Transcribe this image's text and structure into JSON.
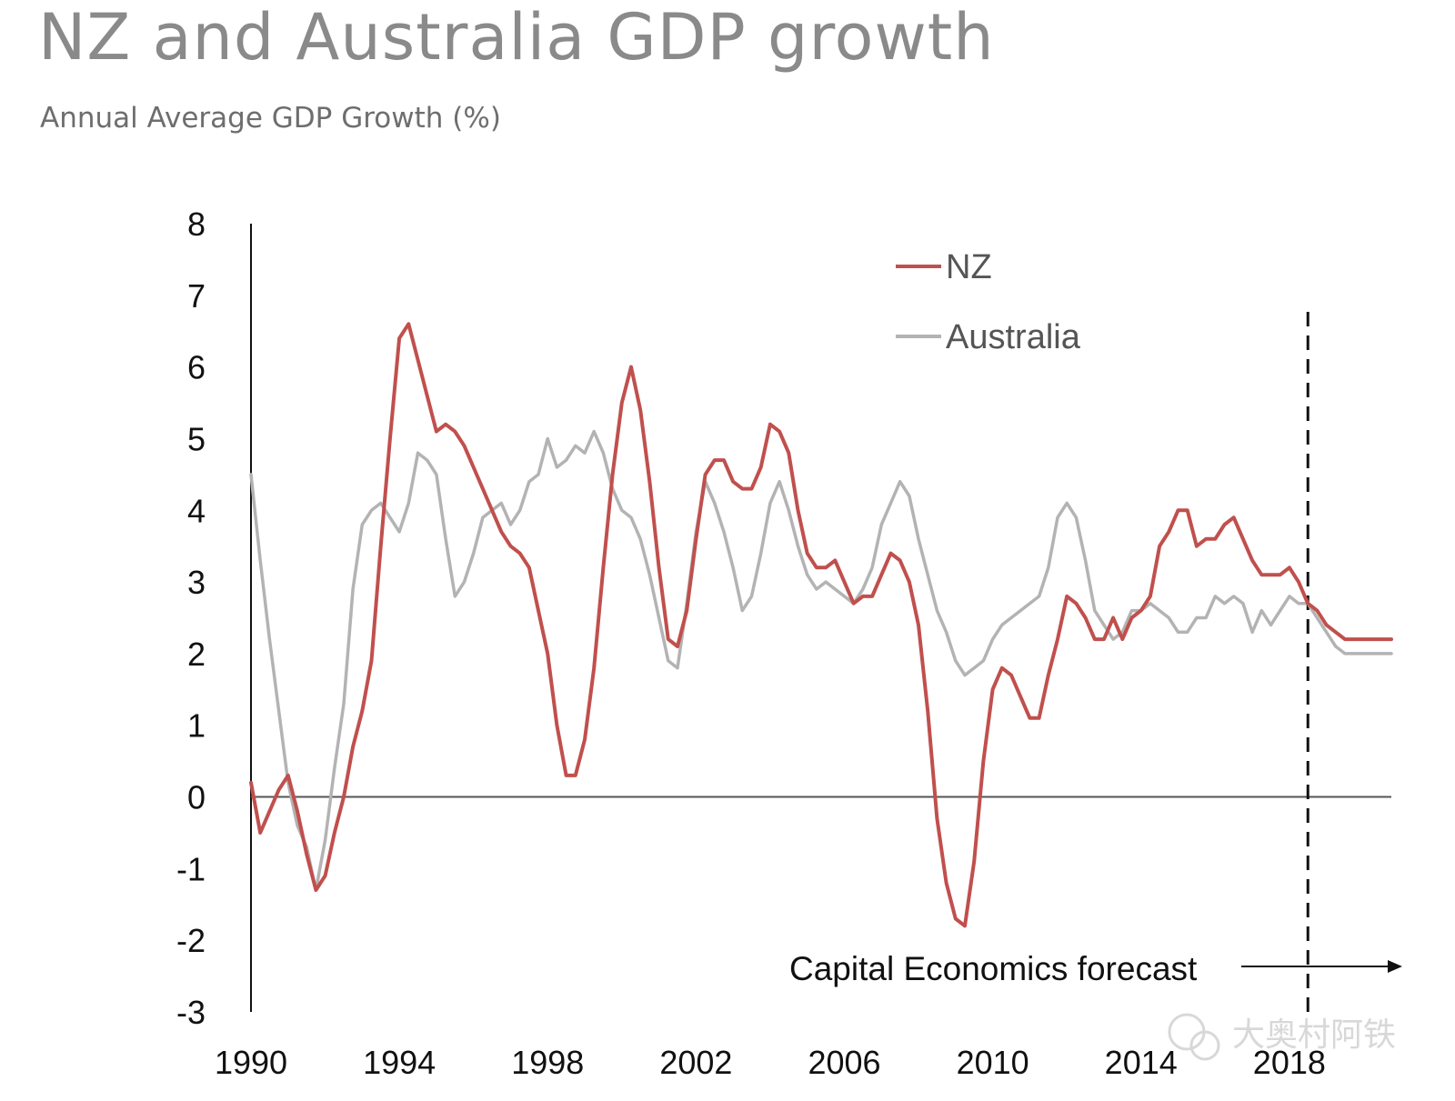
{
  "chart_data": {
    "type": "line",
    "title": "NZ and Australia GDP growth",
    "subtitle": "Annual Average GDP Growth (%)",
    "xlabel": "",
    "ylabel": "",
    "ylim": [
      -3,
      8
    ],
    "xlim": [
      1990,
      2020.75
    ],
    "yticks": [
      "8",
      "7",
      "6",
      "5",
      "4",
      "3",
      "2",
      "1",
      "0",
      "-1",
      "-2",
      "-3"
    ],
    "xticks": [
      {
        "value": 1990,
        "label": "1990"
      },
      {
        "value": 1994,
        "label": "1994"
      },
      {
        "value": 1998,
        "label": "1998"
      },
      {
        "value": 2002,
        "label": "2002"
      },
      {
        "value": 2006,
        "label": "2006"
      },
      {
        "value": 2010,
        "label": "2010"
      },
      {
        "value": 2014,
        "label": "2014"
      },
      {
        "value": 2018,
        "label": "2018"
      }
    ],
    "legend_position": "top-right",
    "series": [
      {
        "name": "NZ",
        "color": "#c0504d",
        "points": [
          [
            1990,
            0.2
          ],
          [
            1990.25,
            -0.5
          ],
          [
            1990.5,
            -0.2
          ],
          [
            1990.75,
            0.1
          ],
          [
            1991,
            0.3
          ],
          [
            1991.25,
            -0.2
          ],
          [
            1991.5,
            -0.8
          ],
          [
            1991.75,
            -1.3
          ],
          [
            1992,
            -1.1
          ],
          [
            1992.25,
            -0.5
          ],
          [
            1992.5,
            0.0
          ],
          [
            1992.75,
            0.7
          ],
          [
            1993,
            1.2
          ],
          [
            1993.25,
            1.9
          ],
          [
            1993.5,
            3.5
          ],
          [
            1993.75,
            5.0
          ],
          [
            1994,
            6.4
          ],
          [
            1994.25,
            6.6
          ],
          [
            1994.5,
            6.1
          ],
          [
            1994.75,
            5.6
          ],
          [
            1995,
            5.1
          ],
          [
            1995.25,
            5.2
          ],
          [
            1995.5,
            5.1
          ],
          [
            1995.75,
            4.9
          ],
          [
            1996,
            4.6
          ],
          [
            1996.25,
            4.3
          ],
          [
            1996.5,
            4.0
          ],
          [
            1996.75,
            3.7
          ],
          [
            1997,
            3.5
          ],
          [
            1997.25,
            3.4
          ],
          [
            1997.5,
            3.2
          ],
          [
            1997.75,
            2.6
          ],
          [
            1998,
            2.0
          ],
          [
            1998.25,
            1.0
          ],
          [
            1998.5,
            0.3
          ],
          [
            1998.75,
            0.3
          ],
          [
            1999,
            0.8
          ],
          [
            1999.25,
            1.8
          ],
          [
            1999.5,
            3.2
          ],
          [
            1999.75,
            4.5
          ],
          [
            2000,
            5.5
          ],
          [
            2000.25,
            6.0
          ],
          [
            2000.5,
            5.4
          ],
          [
            2000.75,
            4.4
          ],
          [
            2001,
            3.2
          ],
          [
            2001.25,
            2.2
          ],
          [
            2001.5,
            2.1
          ],
          [
            2001.75,
            2.6
          ],
          [
            2002,
            3.6
          ],
          [
            2002.25,
            4.5
          ],
          [
            2002.5,
            4.7
          ],
          [
            2002.75,
            4.7
          ],
          [
            2003,
            4.4
          ],
          [
            2003.25,
            4.3
          ],
          [
            2003.5,
            4.3
          ],
          [
            2003.75,
            4.6
          ],
          [
            2004,
            5.2
          ],
          [
            2004.25,
            5.1
          ],
          [
            2004.5,
            4.8
          ],
          [
            2004.75,
            4.0
          ],
          [
            2005,
            3.4
          ],
          [
            2005.25,
            3.2
          ],
          [
            2005.5,
            3.2
          ],
          [
            2005.75,
            3.3
          ],
          [
            2006,
            3.0
          ],
          [
            2006.25,
            2.7
          ],
          [
            2006.5,
            2.8
          ],
          [
            2006.75,
            2.8
          ],
          [
            2007,
            3.1
          ],
          [
            2007.25,
            3.4
          ],
          [
            2007.5,
            3.3
          ],
          [
            2007.75,
            3.0
          ],
          [
            2008,
            2.4
          ],
          [
            2008.25,
            1.2
          ],
          [
            2008.5,
            -0.3
          ],
          [
            2008.75,
            -1.2
          ],
          [
            2009,
            -1.7
          ],
          [
            2009.25,
            -1.8
          ],
          [
            2009.5,
            -0.9
          ],
          [
            2009.75,
            0.5
          ],
          [
            2010,
            1.5
          ],
          [
            2010.25,
            1.8
          ],
          [
            2010.5,
            1.7
          ],
          [
            2010.75,
            1.4
          ],
          [
            2011,
            1.1
          ],
          [
            2011.25,
            1.1
          ],
          [
            2011.5,
            1.7
          ],
          [
            2011.75,
            2.2
          ],
          [
            2012,
            2.8
          ],
          [
            2012.25,
            2.7
          ],
          [
            2012.5,
            2.5
          ],
          [
            2012.75,
            2.2
          ],
          [
            2013,
            2.2
          ],
          [
            2013.25,
            2.5
          ],
          [
            2013.5,
            2.2
          ],
          [
            2013.75,
            2.5
          ],
          [
            2014,
            2.6
          ],
          [
            2014.25,
            2.8
          ],
          [
            2014.5,
            3.5
          ],
          [
            2014.75,
            3.7
          ],
          [
            2015,
            4.0
          ],
          [
            2015.25,
            4.0
          ],
          [
            2015.5,
            3.5
          ],
          [
            2015.75,
            3.6
          ],
          [
            2016,
            3.6
          ],
          [
            2016.25,
            3.8
          ],
          [
            2016.5,
            3.9
          ],
          [
            2016.75,
            3.6
          ],
          [
            2017,
            3.3
          ],
          [
            2017.25,
            3.1
          ],
          [
            2017.5,
            3.1
          ],
          [
            2017.75,
            3.1
          ],
          [
            2018,
            3.2
          ],
          [
            2018.25,
            3.0
          ],
          [
            2018.5,
            2.7
          ],
          [
            2018.75,
            2.6
          ],
          [
            2019,
            2.4
          ],
          [
            2019.25,
            2.3
          ],
          [
            2019.5,
            2.2
          ],
          [
            2019.75,
            2.2
          ],
          [
            2020,
            2.2
          ],
          [
            2020.25,
            2.2
          ],
          [
            2020.5,
            2.2
          ],
          [
            2020.75,
            2.2
          ]
        ]
      },
      {
        "name": "Australia",
        "color": "#b3b3b3",
        "points": [
          [
            1990,
            4.5
          ],
          [
            1990.25,
            3.3
          ],
          [
            1990.5,
            2.2
          ],
          [
            1990.75,
            1.2
          ],
          [
            1991,
            0.2
          ],
          [
            1991.25,
            -0.4
          ],
          [
            1991.5,
            -0.7
          ],
          [
            1991.75,
            -1.3
          ],
          [
            1992,
            -0.6
          ],
          [
            1992.25,
            0.4
          ],
          [
            1992.5,
            1.3
          ],
          [
            1992.75,
            2.9
          ],
          [
            1993,
            3.8
          ],
          [
            1993.25,
            4.0
          ],
          [
            1993.5,
            4.1
          ],
          [
            1993.75,
            3.9
          ],
          [
            1994,
            3.7
          ],
          [
            1994.25,
            4.1
          ],
          [
            1994.5,
            4.8
          ],
          [
            1994.75,
            4.7
          ],
          [
            1995,
            4.5
          ],
          [
            1995.25,
            3.6
          ],
          [
            1995.5,
            2.8
          ],
          [
            1995.75,
            3.0
          ],
          [
            1996,
            3.4
          ],
          [
            1996.25,
            3.9
          ],
          [
            1996.5,
            4.0
          ],
          [
            1996.75,
            4.1
          ],
          [
            1997,
            3.8
          ],
          [
            1997.25,
            4.0
          ],
          [
            1997.5,
            4.4
          ],
          [
            1997.75,
            4.5
          ],
          [
            1998,
            5.0
          ],
          [
            1998.25,
            4.6
          ],
          [
            1998.5,
            4.7
          ],
          [
            1998.75,
            4.9
          ],
          [
            1999,
            4.8
          ],
          [
            1999.25,
            5.1
          ],
          [
            1999.5,
            4.8
          ],
          [
            1999.75,
            4.3
          ],
          [
            2000,
            4.0
          ],
          [
            2000.25,
            3.9
          ],
          [
            2000.5,
            3.6
          ],
          [
            2000.75,
            3.1
          ],
          [
            2001,
            2.5
          ],
          [
            2001.25,
            1.9
          ],
          [
            2001.5,
            1.8
          ],
          [
            2001.75,
            2.7
          ],
          [
            2002,
            3.7
          ],
          [
            2002.25,
            4.4
          ],
          [
            2002.5,
            4.1
          ],
          [
            2002.75,
            3.7
          ],
          [
            2003,
            3.2
          ],
          [
            2003.25,
            2.6
          ],
          [
            2003.5,
            2.8
          ],
          [
            2003.75,
            3.4
          ],
          [
            2004,
            4.1
          ],
          [
            2004.25,
            4.4
          ],
          [
            2004.5,
            4.0
          ],
          [
            2004.75,
            3.5
          ],
          [
            2005,
            3.1
          ],
          [
            2005.25,
            2.9
          ],
          [
            2005.5,
            3.0
          ],
          [
            2005.75,
            2.9
          ],
          [
            2006,
            2.8
          ],
          [
            2006.25,
            2.7
          ],
          [
            2006.5,
            2.9
          ],
          [
            2006.75,
            3.2
          ],
          [
            2007,
            3.8
          ],
          [
            2007.25,
            4.1
          ],
          [
            2007.5,
            4.4
          ],
          [
            2007.75,
            4.2
          ],
          [
            2008,
            3.6
          ],
          [
            2008.25,
            3.1
          ],
          [
            2008.5,
            2.6
          ],
          [
            2008.75,
            2.3
          ],
          [
            2009,
            1.9
          ],
          [
            2009.25,
            1.7
          ],
          [
            2009.5,
            1.8
          ],
          [
            2009.75,
            1.9
          ],
          [
            2010,
            2.2
          ],
          [
            2010.25,
            2.4
          ],
          [
            2010.5,
            2.5
          ],
          [
            2010.75,
            2.6
          ],
          [
            2011,
            2.7
          ],
          [
            2011.25,
            2.8
          ],
          [
            2011.5,
            3.2
          ],
          [
            2011.75,
            3.9
          ],
          [
            2012,
            4.1
          ],
          [
            2012.25,
            3.9
          ],
          [
            2012.5,
            3.3
          ],
          [
            2012.75,
            2.6
          ],
          [
            2013,
            2.4
          ],
          [
            2013.25,
            2.2
          ],
          [
            2013.5,
            2.3
          ],
          [
            2013.75,
            2.6
          ],
          [
            2014,
            2.6
          ],
          [
            2014.25,
            2.7
          ],
          [
            2014.5,
            2.6
          ],
          [
            2014.75,
            2.5
          ],
          [
            2015,
            2.3
          ],
          [
            2015.25,
            2.3
          ],
          [
            2015.5,
            2.5
          ],
          [
            2015.75,
            2.5
          ],
          [
            2016,
            2.8
          ],
          [
            2016.25,
            2.7
          ],
          [
            2016.5,
            2.8
          ],
          [
            2016.75,
            2.7
          ],
          [
            2017,
            2.3
          ],
          [
            2017.25,
            2.6
          ],
          [
            2017.5,
            2.4
          ],
          [
            2017.75,
            2.6
          ],
          [
            2018,
            2.8
          ],
          [
            2018.25,
            2.7
          ],
          [
            2018.5,
            2.7
          ],
          [
            2018.75,
            2.5
          ],
          [
            2019,
            2.3
          ],
          [
            2019.25,
            2.1
          ],
          [
            2019.5,
            2.0
          ],
          [
            2019.75,
            2.0
          ],
          [
            2020,
            2.0
          ],
          [
            2020.25,
            2.0
          ],
          [
            2020.5,
            2.0
          ],
          [
            2020.75,
            2.0
          ]
        ]
      }
    ],
    "forecast_start": 2018.5,
    "annotation": "Capital Economics forecast"
  },
  "watermark": "大奥村阿铁"
}
